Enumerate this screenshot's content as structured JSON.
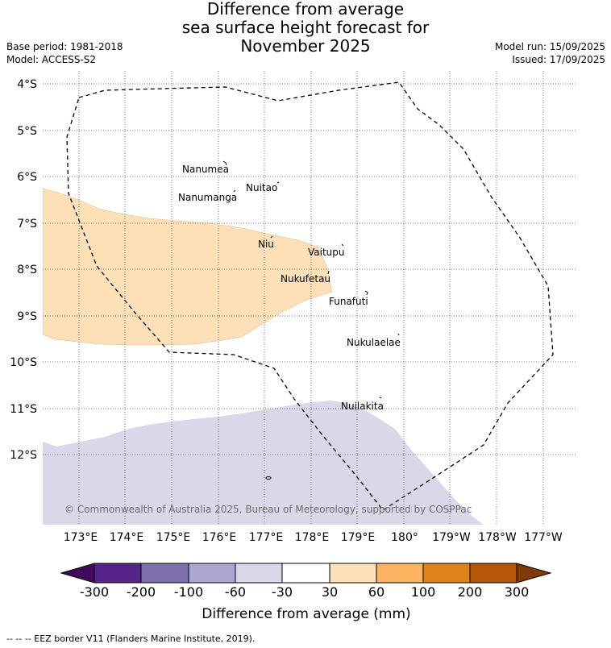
{
  "title": {
    "line1": "Difference from average",
    "line2": "sea surface height forecast for",
    "line3": "November 2025"
  },
  "meta": {
    "base_period": "Base period: 1981-2018",
    "model": "Model: ACCESS-S2",
    "model_run": "Model run: 15/09/2025",
    "issued": "Issued: 17/09/2025"
  },
  "map": {
    "lat_labels": [
      "4°S",
      "5°S",
      "6°S",
      "7°S",
      "8°S",
      "9°S",
      "10°S",
      "11°S",
      "12°S"
    ],
    "lon_labels": [
      "173°E",
      "174°E",
      "175°E",
      "176°E",
      "177°E",
      "178°E",
      "179°E",
      "180°",
      "179°W",
      "178°W",
      "177°W"
    ],
    "places": [
      "Nanumea",
      "Nuitao",
      "Nanumanga",
      "Niu",
      "Vaitupu",
      "Nukufetau",
      "Funafuti",
      "Nukulaelae",
      "Nuilakita"
    ],
    "copyright": "© Commonwealth of Australia 2025, Bureau of Meteorology, supported by COSPPac",
    "gridlines": "dotted",
    "colors": {
      "positive_30_60": "#fde0b7",
      "negative_60_30": "#d8d8e9",
      "eez_border": "#000000"
    }
  },
  "colorbar": {
    "ticks": [
      "-300",
      "-200",
      "-100",
      "-60",
      "-30",
      "30",
      "60",
      "100",
      "200",
      "300"
    ],
    "colors": [
      "#3f0a5e",
      "#542488",
      "#7f70ad",
      "#aba6cf",
      "#d8d8e9",
      "#ffffff",
      "#fde0b7",
      "#fdb462",
      "#e1831a",
      "#b3560a",
      "#7e3b08"
    ],
    "label": "Difference from average (mm)"
  },
  "footnote": "--  --  -- EEZ border V11 (Flanders Marine Institute, 2019)."
}
